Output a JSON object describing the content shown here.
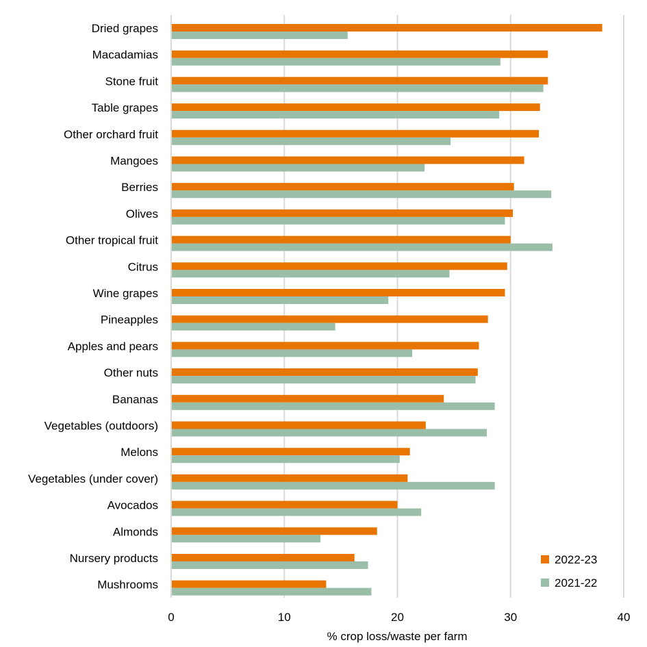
{
  "chart_data": {
    "type": "bar",
    "orientation": "horizontal",
    "title": "",
    "xlabel": "% crop loss/waste per farm",
    "ylabel": "",
    "xlim": [
      0,
      40
    ],
    "xticks": [
      "0",
      "10",
      "20",
      "30",
      "40"
    ],
    "grid": true,
    "legend_position": "bottom-right",
    "categories": [
      "Dried grapes",
      "Macadamias",
      "Stone fruit",
      "Table grapes",
      "Other orchard fruit",
      "Mangoes",
      "Berries",
      "Olives",
      "Other tropical fruit",
      "Citrus",
      "Wine grapes",
      "Pineapples",
      "Apples and pears",
      "Other nuts",
      "Bananas",
      "Vegetables (outdoors)",
      "Melons",
      "Vegetables (under cover)",
      "Avocados",
      "Almonds",
      "Nursery products",
      "Mushrooms"
    ],
    "series": [
      {
        "name": "2022-23",
        "color": "#E87500",
        "values": [
          38.1,
          33.3,
          33.3,
          32.6,
          32.5,
          31.2,
          30.3,
          30.2,
          30.0,
          29.7,
          29.5,
          28.0,
          27.2,
          27.1,
          24.1,
          22.5,
          21.1,
          20.9,
          20.0,
          18.2,
          16.2,
          13.7
        ]
      },
      {
        "name": "2021-22",
        "color": "#9BBEA9",
        "values": [
          15.6,
          29.1,
          32.9,
          29.0,
          24.7,
          22.4,
          33.6,
          29.5,
          33.7,
          24.6,
          19.2,
          14.5,
          21.3,
          26.9,
          28.6,
          27.9,
          20.2,
          28.6,
          22.1,
          13.2,
          17.4,
          17.7
        ]
      }
    ]
  }
}
